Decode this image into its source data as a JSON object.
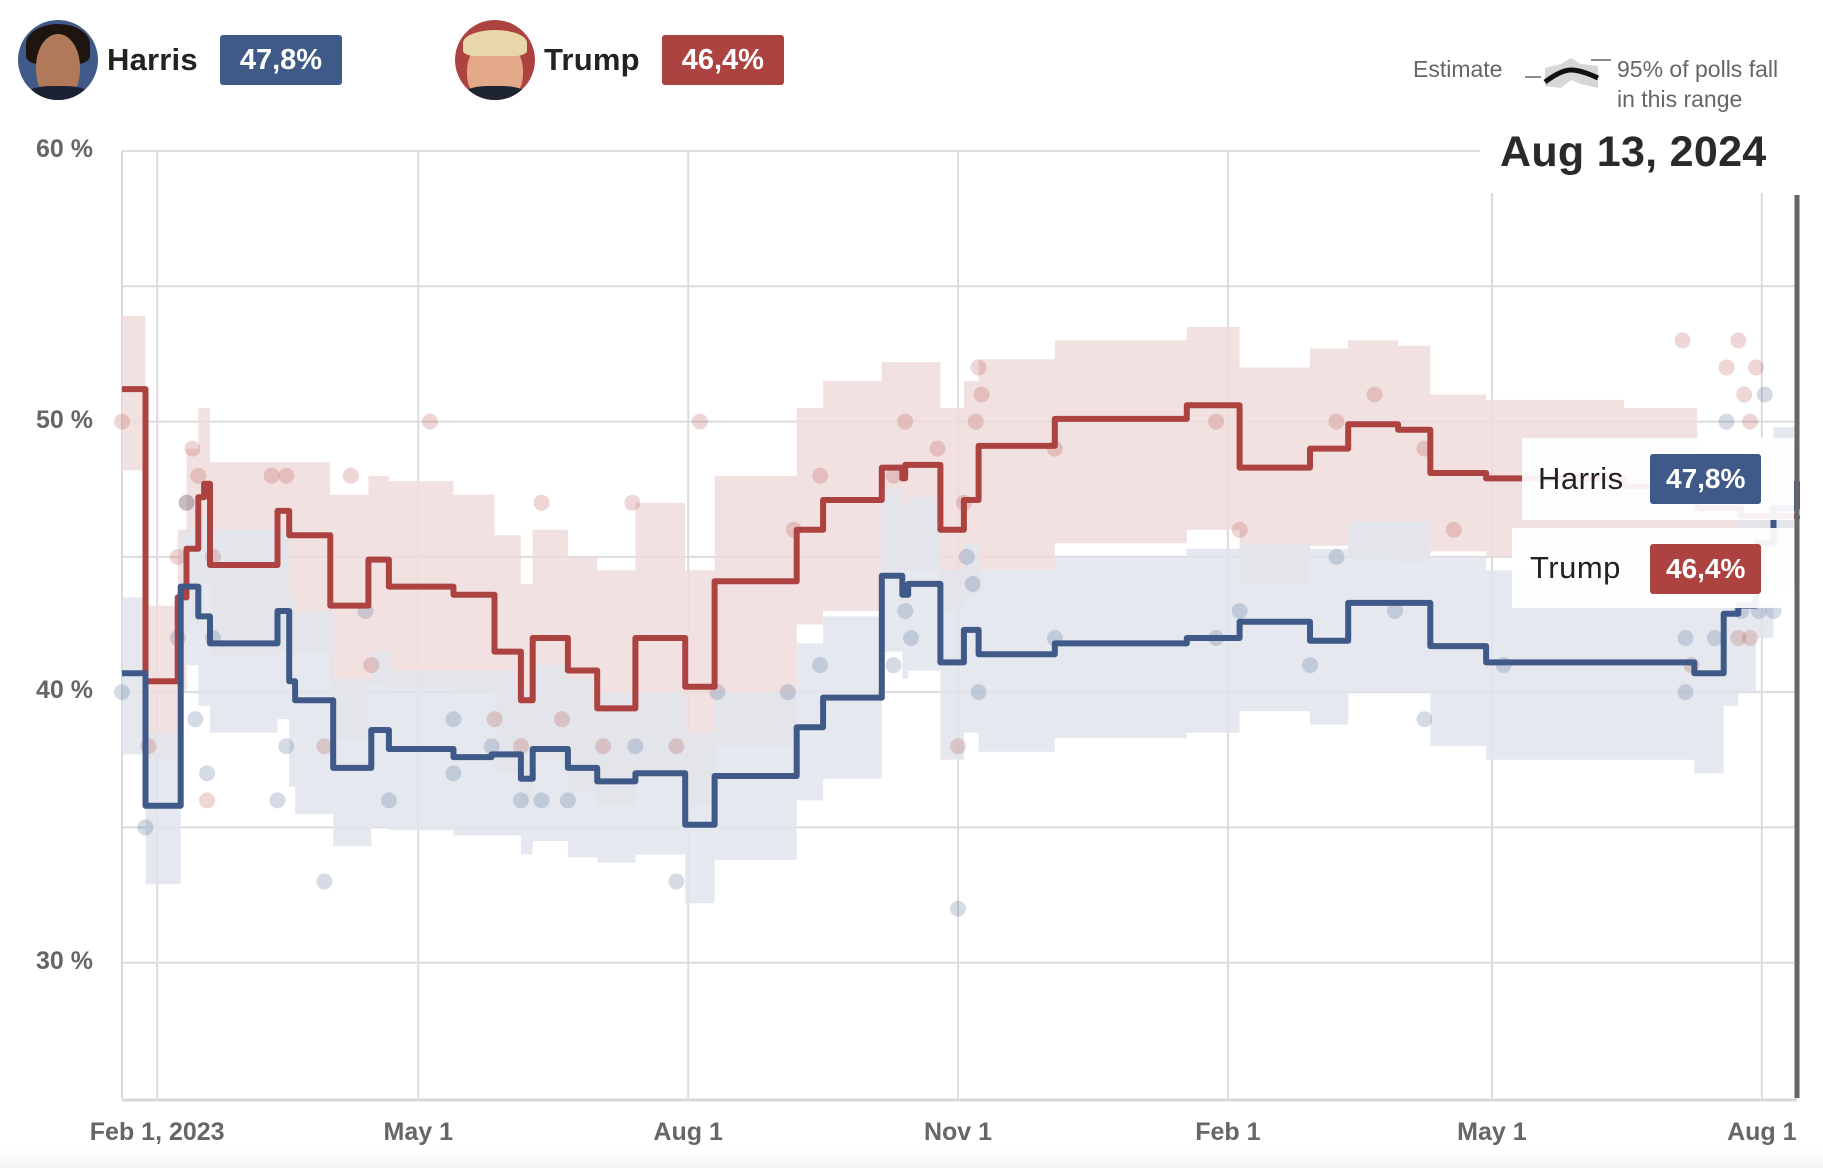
{
  "header": {
    "candidates": [
      {
        "name": "Harris",
        "value": "47,8%",
        "color": "#3f5a88",
        "avatar": "harris-portrait"
      },
      {
        "name": "Trump",
        "value": "46,4%",
        "color": "#ad4341",
        "avatar": "trump-portrait"
      }
    ]
  },
  "legend": {
    "estimate_label": "Estimate",
    "range_line1": "95% of polls fall",
    "range_line2": "in this range"
  },
  "current_date": "Aug 13, 2024",
  "end_labels": [
    {
      "name": "Harris",
      "value": "47,8%"
    },
    {
      "name": "Trump",
      "value": "46,4%"
    }
  ],
  "chart_data": {
    "type": "line",
    "title": "",
    "xlabel": "",
    "ylabel": "",
    "ylim": [
      25,
      60
    ],
    "xlim": [
      "2023-01-20",
      "2024-08-13"
    ],
    "grid": true,
    "y_ticks": [
      30,
      35,
      40,
      45,
      50,
      55,
      60
    ],
    "y_tick_labels": [
      "30 %",
      "",
      "40 %",
      "",
      "50 %",
      "",
      "60 %"
    ],
    "x_ticks": [
      "2023-02-01",
      "2023-05-01",
      "2023-08-01",
      "2023-11-01",
      "2024-02-01",
      "2024-05-01",
      "2024-08-01"
    ],
    "x_tick_labels": [
      "Feb 1, 2023",
      "May 1",
      "Aug 1",
      "Nov 1",
      "Feb 1",
      "May 1",
      "Aug 1"
    ],
    "legend": "top-right",
    "marker_date": "2024-08-13",
    "series": [
      {
        "name": "Trump",
        "color": "#ad4341",
        "band_color": "#f0dcdc",
        "final_value": 46.4,
        "steps": [
          [
            "2023-01-20",
            51.2
          ],
          [
            "2023-01-28",
            40.4
          ],
          [
            "2023-02-08",
            43.5
          ],
          [
            "2023-02-11",
            45.3
          ],
          [
            "2023-02-15",
            47.2
          ],
          [
            "2023-02-17",
            47.7
          ],
          [
            "2023-02-19",
            44.7
          ],
          [
            "2023-03-14",
            46.7
          ],
          [
            "2023-03-18",
            45.8
          ],
          [
            "2023-04-01",
            43.2
          ],
          [
            "2023-04-14",
            44.9
          ],
          [
            "2023-04-21",
            43.9
          ],
          [
            "2023-05-13",
            43.6
          ],
          [
            "2023-05-27",
            41.5
          ],
          [
            "2023-06-05",
            39.7
          ],
          [
            "2023-06-09",
            42.0
          ],
          [
            "2023-06-21",
            40.8
          ],
          [
            "2023-07-01",
            39.4
          ],
          [
            "2023-07-14",
            42.0
          ],
          [
            "2023-07-31",
            40.2
          ],
          [
            "2023-08-10",
            44.1
          ],
          [
            "2023-09-07",
            46.0
          ],
          [
            "2023-09-16",
            47.1
          ],
          [
            "2023-10-06",
            48.3
          ],
          [
            "2023-10-13",
            47.9
          ],
          [
            "2023-10-14",
            48.4
          ],
          [
            "2023-10-26",
            46.0
          ],
          [
            "2023-11-03",
            47.1
          ],
          [
            "2023-11-08",
            49.1
          ],
          [
            "2023-12-04",
            50.1
          ],
          [
            "2024-01-18",
            50.6
          ],
          [
            "2024-02-05",
            48.3
          ],
          [
            "2024-02-29",
            49.0
          ],
          [
            "2024-03-13",
            49.9
          ],
          [
            "2024-03-30",
            49.7
          ],
          [
            "2024-04-10",
            48.1
          ],
          [
            "2024-04-29",
            47.9
          ],
          [
            "2024-06-15",
            47.6
          ],
          [
            "2024-07-10",
            46.8
          ],
          [
            "2024-07-25",
            46.5
          ],
          [
            "2024-08-13",
            46.4
          ]
        ],
        "band": [
          [
            53.9,
            48.2
          ],
          [
            43.2,
            37.5
          ],
          [
            46.0,
            40.0
          ],
          [
            49.0,
            42.5
          ],
          [
            50.5,
            43.0
          ],
          [
            50.5,
            44.0
          ],
          [
            48.5,
            41.3
          ],
          [
            48.5,
            41.5
          ],
          [
            48.5,
            41.5
          ],
          [
            47.3,
            38.2
          ],
          [
            48.0,
            40.3
          ],
          [
            47.8,
            40.1
          ],
          [
            47.3,
            40.0
          ],
          [
            45.8,
            37.0
          ],
          [
            44.0,
            35.9
          ],
          [
            46.0,
            37.5
          ],
          [
            45.0,
            36.3
          ],
          [
            44.5,
            35.8
          ],
          [
            47.0,
            37.0
          ],
          [
            44.5,
            35.8
          ],
          [
            48.0,
            38.0
          ],
          [
            50.5,
            42.5
          ],
          [
            51.5,
            43.0
          ],
          [
            52.2,
            44.5
          ],
          [
            52.2,
            44.5
          ],
          [
            52.2,
            44.5
          ],
          [
            50.5,
            43.0
          ],
          [
            51.5,
            43.5
          ],
          [
            52.3,
            44.5
          ],
          [
            53.0,
            45.5
          ],
          [
            53.5,
            46.0
          ],
          [
            52.0,
            44.0
          ],
          [
            52.7,
            45.4
          ],
          [
            53.0,
            45.0
          ],
          [
            52.8,
            44.8
          ],
          [
            51.0,
            45.2
          ],
          [
            50.8,
            45.0
          ],
          [
            50.5,
            44.7
          ],
          [
            49.0,
            44.2
          ],
          [
            48.8,
            44.2
          ],
          [
            48.8,
            44.0
          ]
        ],
        "polls": [
          [
            "2023-01-20",
            50
          ],
          [
            "2023-01-29",
            38
          ],
          [
            "2023-02-08",
            45
          ],
          [
            "2023-02-13",
            49
          ],
          [
            "2023-02-15",
            48
          ],
          [
            "2023-02-18",
            36
          ],
          [
            "2023-02-11",
            47
          ],
          [
            "2023-02-20",
            45
          ],
          [
            "2023-03-12",
            48
          ],
          [
            "2023-03-17",
            48
          ],
          [
            "2023-03-30",
            38
          ],
          [
            "2023-04-08",
            48
          ],
          [
            "2023-04-15",
            41
          ],
          [
            "2023-05-05",
            50
          ],
          [
            "2023-05-27",
            39
          ],
          [
            "2023-06-05",
            38
          ],
          [
            "2023-06-12",
            47
          ],
          [
            "2023-06-19",
            39
          ],
          [
            "2023-07-03",
            38
          ],
          [
            "2023-07-13",
            47
          ],
          [
            "2023-07-28",
            38
          ],
          [
            "2023-08-05",
            50
          ],
          [
            "2023-09-06",
            46
          ],
          [
            "2023-09-15",
            48
          ],
          [
            "2023-10-10",
            48
          ],
          [
            "2023-10-14",
            50
          ],
          [
            "2023-10-25",
            49
          ],
          [
            "2023-11-01",
            38
          ],
          [
            "2023-11-03",
            47
          ],
          [
            "2023-11-07",
            50
          ],
          [
            "2023-11-08",
            52
          ],
          [
            "2023-11-09",
            51
          ],
          [
            "2023-12-04",
            49
          ],
          [
            "2024-01-28",
            50
          ],
          [
            "2024-02-05",
            46
          ],
          [
            "2024-03-09",
            50
          ],
          [
            "2024-03-22",
            51
          ],
          [
            "2024-04-08",
            49
          ],
          [
            "2024-04-18",
            46
          ],
          [
            "2024-07-05",
            53
          ],
          [
            "2024-07-20",
            52
          ],
          [
            "2024-07-24",
            53
          ],
          [
            "2024-07-26",
            51
          ],
          [
            "2024-07-28",
            50
          ],
          [
            "2024-07-30",
            52
          ],
          [
            "2024-07-24",
            42
          ],
          [
            "2024-07-28",
            42
          ],
          [
            "2024-07-08",
            41
          ],
          [
            "2024-07-10",
            44
          ]
        ]
      },
      {
        "name": "Harris",
        "color": "#3f5a88",
        "band_color": "#e1e5ec",
        "final_value": 47.8,
        "steps": [
          [
            "2023-01-20",
            40.7
          ],
          [
            "2023-01-28",
            35.8
          ],
          [
            "2023-02-09",
            43.9
          ],
          [
            "2023-02-15",
            42.8
          ],
          [
            "2023-02-19",
            41.8
          ],
          [
            "2023-03-14",
            43.0
          ],
          [
            "2023-03-18",
            40.4
          ],
          [
            "2023-03-20",
            39.7
          ],
          [
            "2023-04-02",
            37.2
          ],
          [
            "2023-04-15",
            38.6
          ],
          [
            "2023-04-21",
            37.9
          ],
          [
            "2023-05-13",
            37.6
          ],
          [
            "2023-05-26",
            37.7
          ],
          [
            "2023-06-05",
            36.8
          ],
          [
            "2023-06-09",
            37.9
          ],
          [
            "2023-06-21",
            37.2
          ],
          [
            "2023-07-01",
            36.7
          ],
          [
            "2023-07-14",
            37.0
          ],
          [
            "2023-07-31",
            35.1
          ],
          [
            "2023-08-10",
            36.9
          ],
          [
            "2023-09-07",
            38.7
          ],
          [
            "2023-09-16",
            39.8
          ],
          [
            "2023-10-06",
            44.3
          ],
          [
            "2023-10-13",
            43.6
          ],
          [
            "2023-10-15",
            44.0
          ],
          [
            "2023-10-26",
            41.1
          ],
          [
            "2023-11-03",
            42.3
          ],
          [
            "2023-11-08",
            41.4
          ],
          [
            "2023-12-04",
            41.8
          ],
          [
            "2024-01-18",
            42.0
          ],
          [
            "2024-02-05",
            42.6
          ],
          [
            "2024-02-29",
            41.9
          ],
          [
            "2024-03-13",
            43.3
          ],
          [
            "2024-04-10",
            41.7
          ],
          [
            "2024-04-29",
            41.1
          ],
          [
            "2024-07-09",
            40.7
          ],
          [
            "2024-07-19",
            42.9
          ],
          [
            "2024-07-24",
            43.2
          ],
          [
            "2024-07-30",
            45.5
          ],
          [
            "2024-08-05",
            46.8
          ],
          [
            "2024-08-13",
            47.8
          ]
        ],
        "band": [
          [
            43.5,
            37.7
          ],
          [
            38.5,
            32.9
          ],
          [
            46.0,
            41.0
          ],
          [
            46.5,
            39.5
          ],
          [
            46.0,
            38.5
          ],
          [
            46.0,
            39.0
          ],
          [
            43.5,
            36.5
          ],
          [
            43.0,
            35.5
          ],
          [
            40.5,
            34.3
          ],
          [
            41.5,
            35.0
          ],
          [
            40.8,
            34.9
          ],
          [
            40.8,
            34.7
          ],
          [
            40.8,
            34.7
          ],
          [
            40.0,
            34.0
          ],
          [
            41.0,
            34.5
          ],
          [
            40.5,
            33.9
          ],
          [
            40.0,
            33.7
          ],
          [
            40.0,
            34.0
          ],
          [
            38.5,
            32.2
          ],
          [
            40.0,
            33.8
          ],
          [
            41.8,
            36.0
          ],
          [
            42.8,
            36.8
          ],
          [
            47.5,
            41.5
          ],
          [
            47.0,
            40.5
          ],
          [
            47.2,
            40.8
          ],
          [
            44.5,
            37.5
          ],
          [
            45.5,
            38.5
          ],
          [
            44.5,
            37.8
          ],
          [
            45.0,
            38.3
          ],
          [
            45.3,
            38.5
          ],
          [
            45.5,
            39.3
          ],
          [
            45.3,
            38.8
          ],
          [
            46.3,
            40.0
          ],
          [
            45.0,
            38.0
          ],
          [
            44.5,
            37.5
          ],
          [
            44.0,
            37.0
          ],
          [
            46.0,
            39.5
          ],
          [
            46.8,
            40.0
          ],
          [
            48.5,
            42.0
          ],
          [
            49.8,
            43.8
          ],
          [
            50.8,
            45.0
          ]
        ],
        "polls": [
          [
            "2023-01-20",
            40
          ],
          [
            "2023-01-28",
            35
          ],
          [
            "2023-02-08",
            42
          ],
          [
            "2023-02-11",
            47
          ],
          [
            "2023-02-14",
            39
          ],
          [
            "2023-02-18",
            37
          ],
          [
            "2023-02-20",
            42
          ],
          [
            "2023-03-14",
            36
          ],
          [
            "2023-03-17",
            38
          ],
          [
            "2023-03-30",
            33
          ],
          [
            "2023-04-13",
            43
          ],
          [
            "2023-04-21",
            36
          ],
          [
            "2023-05-13",
            39
          ],
          [
            "2023-05-13",
            37
          ],
          [
            "2023-05-26",
            38
          ],
          [
            "2023-06-05",
            36
          ],
          [
            "2023-06-12",
            36
          ],
          [
            "2023-06-21",
            36
          ],
          [
            "2023-07-14",
            38
          ],
          [
            "2023-07-28",
            33
          ],
          [
            "2023-08-11",
            40
          ],
          [
            "2023-09-04",
            40
          ],
          [
            "2023-09-15",
            41
          ],
          [
            "2023-10-10",
            41
          ],
          [
            "2023-10-14",
            43
          ],
          [
            "2023-10-16",
            42
          ],
          [
            "2023-11-01",
            32
          ],
          [
            "2023-11-04",
            45
          ],
          [
            "2023-11-06",
            44
          ],
          [
            "2023-11-08",
            40
          ],
          [
            "2023-12-04",
            42
          ],
          [
            "2024-01-28",
            42
          ],
          [
            "2024-02-05",
            43
          ],
          [
            "2024-02-29",
            41
          ],
          [
            "2024-03-09",
            45
          ],
          [
            "2024-03-29",
            43
          ],
          [
            "2024-04-08",
            39
          ],
          [
            "2024-05-05",
            41
          ],
          [
            "2024-07-06",
            42
          ],
          [
            "2024-07-06",
            40
          ],
          [
            "2024-07-16",
            42
          ],
          [
            "2024-07-20",
            50
          ],
          [
            "2024-07-25",
            43
          ],
          [
            "2024-07-28",
            44
          ],
          [
            "2024-07-31",
            43
          ],
          [
            "2024-08-02",
            51
          ],
          [
            "2024-08-05",
            43
          ]
        ]
      }
    ]
  }
}
